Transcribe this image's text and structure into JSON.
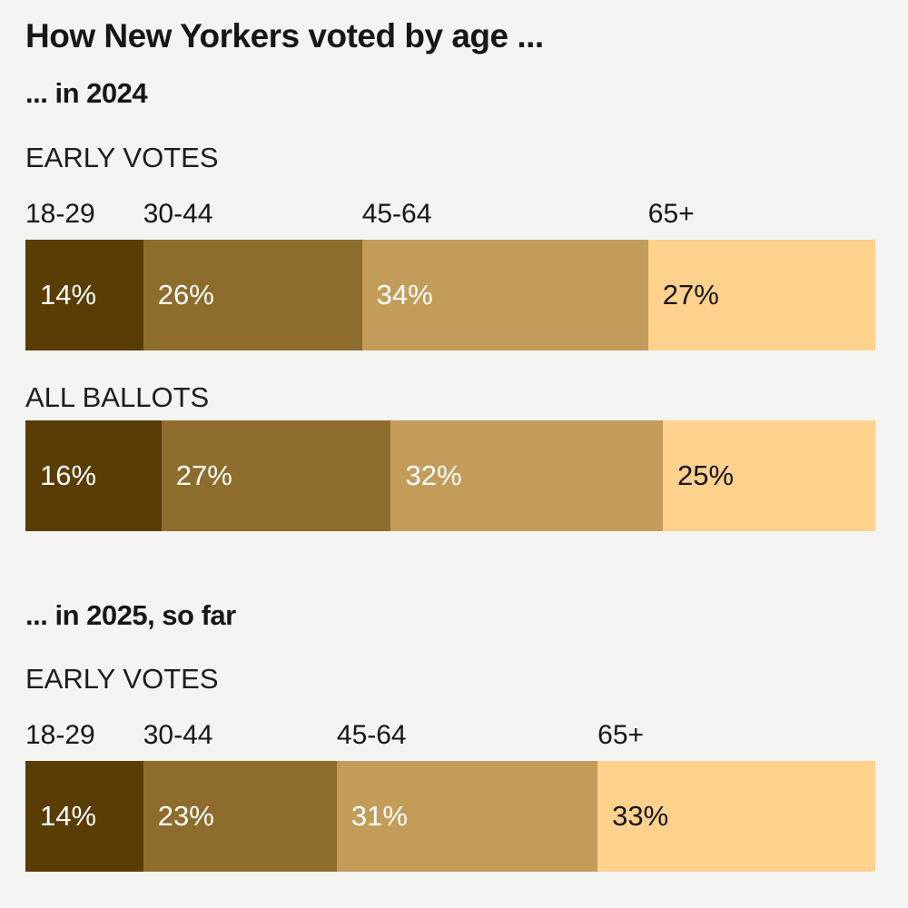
{
  "page": {
    "background_color": "#f4f4f3",
    "text_color": "#161616"
  },
  "header": {
    "title": "How New Yorkers voted by age ..."
  },
  "palette": {
    "segment_colors": [
      "#5a3c05",
      "#8e6c2c",
      "#c49c5a",
      "#fed18d"
    ],
    "segment_text_colors": [
      "#ffffff",
      "#ffffff",
      "#ffffff",
      "#161616"
    ]
  },
  "sections": [
    {
      "heading": "... in 2024",
      "chart_indexes": [
        0,
        1
      ]
    },
    {
      "heading": "... in 2025, so far",
      "chart_indexes": [
        2
      ]
    }
  ],
  "chart_data": [
    {
      "type": "bar",
      "stacked": true,
      "orientation": "horizontal",
      "title": "EARLY VOTES",
      "section": "... in 2024",
      "categories": [
        "18-29",
        "30-44",
        "45-64",
        "65+"
      ],
      "values": [
        14,
        26,
        34,
        27
      ],
      "value_labels": [
        "14%",
        "26%",
        "34%",
        "27%"
      ],
      "unit": "%",
      "show_category_labels": true
    },
    {
      "type": "bar",
      "stacked": true,
      "orientation": "horizontal",
      "title": "ALL BALLOTS",
      "section": "... in 2024",
      "categories": [
        "18-29",
        "30-44",
        "45-64",
        "65+"
      ],
      "values": [
        16,
        27,
        32,
        25
      ],
      "value_labels": [
        "16%",
        "27%",
        "32%",
        "25%"
      ],
      "unit": "%",
      "show_category_labels": false
    },
    {
      "type": "bar",
      "stacked": true,
      "orientation": "horizontal",
      "title": "EARLY VOTES",
      "section": "... in 2025, so far",
      "categories": [
        "18-29",
        "30-44",
        "45-64",
        "65+"
      ],
      "values": [
        14,
        23,
        31,
        33
      ],
      "value_labels": [
        "14%",
        "23%",
        "31%",
        "33%"
      ],
      "unit": "%",
      "show_category_labels": true
    }
  ]
}
